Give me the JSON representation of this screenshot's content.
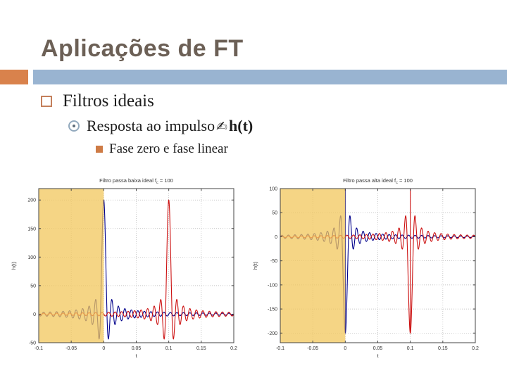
{
  "slide": {
    "title": "Aplicações de FT",
    "title_color": "#6C6056",
    "accent_orange": "#D9824C",
    "accent_blue": "#99B4D1",
    "bullets": {
      "level1": "Filtros ideais",
      "level2_text": "Resposta ao impulso",
      "level2_symbol": "✍",
      "level2_term": "h(t)",
      "level3": "Fase zero e fase linear"
    }
  },
  "chart_data": [
    {
      "type": "line",
      "title": "Filtro passa baixa ideal fc = 100",
      "title_parts": {
        "main": "Filtro passa baixa ideal f",
        "sub": "c",
        "tail": " = 100"
      },
      "xlabel": "t",
      "ylabel": "h(t)",
      "xlim": [
        -0.1,
        0.2
      ],
      "ylim": [
        -50,
        220
      ],
      "xticks": [
        "-0.1",
        "-0.05",
        "0",
        "0.05",
        "0.1",
        "0.15",
        "0.2"
      ],
      "yticks": [
        "-50",
        "0",
        "50",
        "100",
        "150",
        "200"
      ],
      "grid": true,
      "legend": "none",
      "shaded_region": {
        "x_start": -0.1,
        "x_end": 0,
        "color": "#F2C75C",
        "opacity": 0.75
      },
      "series": [
        {
          "name": "fase zero",
          "color": "#00008B",
          "shape": "sinc",
          "sign": 1,
          "center": 0,
          "fc": 100,
          "peak": 200,
          "delta_line": false
        },
        {
          "name": "fase linear",
          "color": "#CC1111",
          "shape": "sinc",
          "sign": 1,
          "center": 0.1,
          "fc": 100,
          "peak": 200,
          "delta_line": false
        }
      ]
    },
    {
      "type": "line",
      "title": "Filtro passa alta ideal fc = 100",
      "title_parts": {
        "main": "Filtro passa alta ideal f",
        "sub": "c",
        "tail": " = 100"
      },
      "xlabel": "t",
      "ylabel": "h(t)",
      "xlim": [
        -0.1,
        0.2
      ],
      "ylim": [
        -220,
        100
      ],
      "xticks": [
        "-0.1",
        "-0.05",
        "0",
        "0.05",
        "0.1",
        "0.15",
        "0.2"
      ],
      "yticks": [
        "-200",
        "-150",
        "-100",
        "-50",
        "0",
        "50",
        "100"
      ],
      "grid": true,
      "legend": "none",
      "shaded_region": {
        "x_start": -0.1,
        "x_end": 0,
        "color": "#F2C75C",
        "opacity": 0.75
      },
      "series": [
        {
          "name": "fase zero",
          "color": "#00008B",
          "shape": "sinc",
          "sign": -1,
          "center": 0,
          "fc": 100,
          "peak": 200,
          "delta_line": true
        },
        {
          "name": "fase linear",
          "color": "#CC1111",
          "shape": "sinc",
          "sign": -1,
          "center": 0.1,
          "fc": 100,
          "peak": 200,
          "delta_line": true
        }
      ]
    }
  ]
}
